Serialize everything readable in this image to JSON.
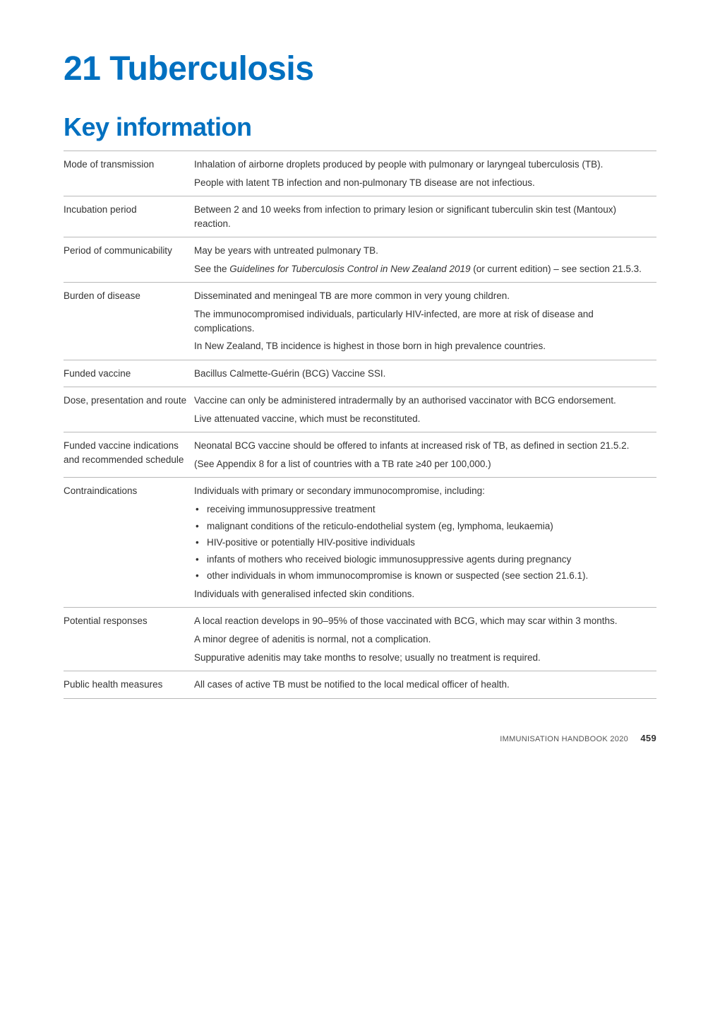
{
  "chapter": {
    "title": "21 Tuberculosis"
  },
  "section": {
    "title": "Key information"
  },
  "rows": [
    {
      "label": "Mode of transmission",
      "paras": [
        "Inhalation of airborne droplets produced by people with pulmonary or laryngeal tuberculosis (TB).",
        "People with latent TB infection and non-pulmonary TB disease are not infectious."
      ]
    },
    {
      "label": "Incubation period",
      "paras": [
        "Between 2 and 10 weeks from infection to primary lesion or significant tuberculin skin test (Mantoux) reaction."
      ]
    },
    {
      "label": "Period of communicability",
      "paras": [
        "May be years with untreated pulmonary TB.",
        "See the <em>Guidelines for Tuberculosis Control in New Zealand 2019</em> (or current edition) – see section 21.5.3."
      ]
    },
    {
      "label": "Burden of disease",
      "paras": [
        "Disseminated and meningeal TB are more common in very young children.",
        "The immunocompromised individuals, particularly HIV-infected, are more at risk of disease and complications.",
        "In New Zealand, TB incidence is highest in those born in high prevalence countries."
      ]
    },
    {
      "label": "Funded vaccine",
      "paras": [
        "Bacillus Calmette-Guérin (BCG) Vaccine SSI."
      ]
    },
    {
      "label": "Dose, presentation and route",
      "paras": [
        "Vaccine can only be administered intradermally by an authorised vaccinator with BCG endorsement.",
        "Live attenuated vaccine, which must be reconstituted."
      ]
    },
    {
      "label": "Funded vaccine indications and recommended schedule",
      "paras": [
        "Neonatal BCG vaccine should be offered to infants at increased risk of TB, as defined in section 21.5.2.",
        "(See Appendix 8 for a list of countries with a TB rate ≥40 per 100,000.)"
      ]
    },
    {
      "label": "Contraindications",
      "intro": "Individuals with primary or secondary immunocompromise, including:",
      "bullets": [
        "receiving immunosuppressive treatment",
        "malignant conditions of the reticulo-endothelial system (eg, lymphoma, leukaemia)",
        "HIV-positive or potentially HIV-positive individuals",
        "infants of mothers who received biologic immunosuppressive agents during pregnancy",
        "other individuals in whom immunocompromise is known or suspected (see section 21.6.1)."
      ],
      "outro": "Individuals with generalised infected skin conditions."
    },
    {
      "label": "Potential responses",
      "paras": [
        "A local reaction develops in 90–95% of those vaccinated with BCG, which may scar within 3 months.",
        "A minor degree of adenitis is normal, not a complication.",
        "Suppurative adenitis may take months to resolve; usually no treatment is required."
      ]
    },
    {
      "label": "Public health measures",
      "paras": [
        "All cases of active TB must be notified to the local medical officer of health."
      ]
    }
  ],
  "footer": {
    "source": "IMMUNISATION HANDBOOK 2020",
    "page": "459"
  },
  "style": {
    "accent_color": "#0070c0",
    "text_color": "#333333",
    "rule_color": "#b8b8b8",
    "background": "#ffffff",
    "chapter_fontsize": 48,
    "section_fontsize": 36,
    "body_fontsize": 13.5,
    "label_col_width": 185
  }
}
